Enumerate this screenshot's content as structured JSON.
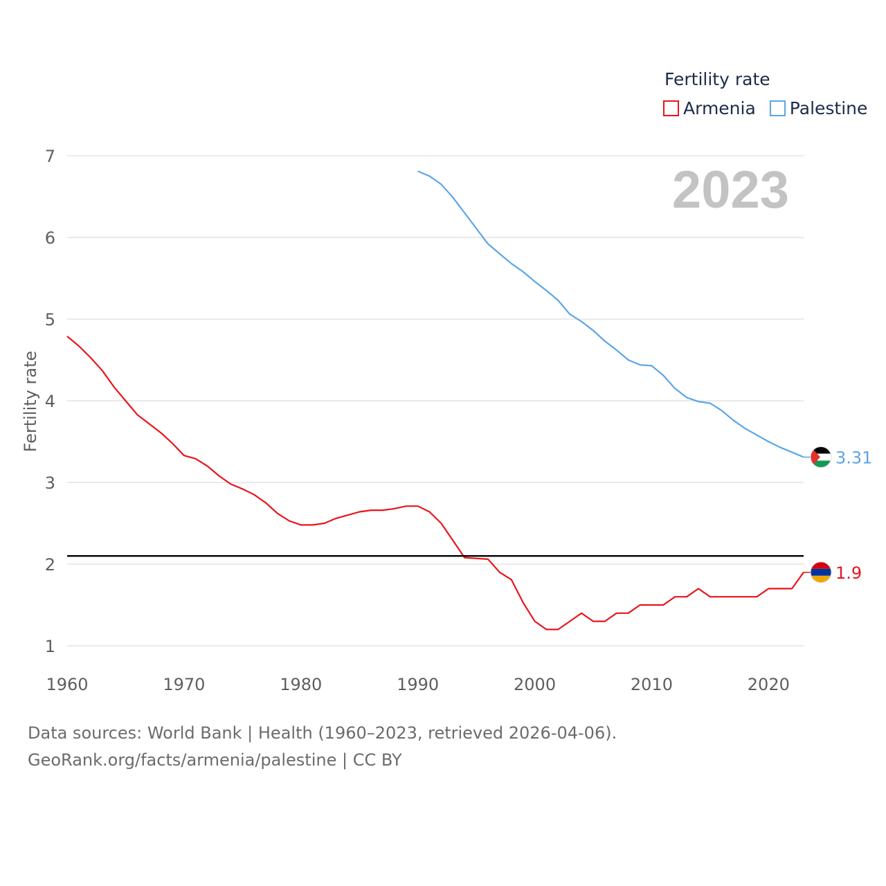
{
  "legend": {
    "title": "Fertility rate",
    "items": [
      {
        "label": "Armenia",
        "color": "#e8141b"
      },
      {
        "label": "Palestine",
        "color": "#5aa5e6"
      }
    ]
  },
  "year_label": "2023",
  "footer": {
    "line1": "Data sources: World Bank | Health (1960–2023, retrieved 2026-04-06).",
    "line2": "GeoRank.org/facts/armenia/palestine | CC BY"
  },
  "chart_data": {
    "type": "line",
    "ylabel": "Fertility rate",
    "xlabel": "",
    "xlim": [
      1960,
      2023
    ],
    "ylim": [
      0.8,
      7.0
    ],
    "x_ticks": [
      1960,
      1970,
      1980,
      1990,
      2000,
      2010,
      2020
    ],
    "y_ticks": [
      1,
      2,
      3,
      4,
      5,
      6,
      7
    ],
    "reference_line": {
      "value": 2.1,
      "color": "#000000"
    },
    "series": [
      {
        "name": "Armenia",
        "color": "#e8141b",
        "end_label": "1.9",
        "flag": "armenia-flag",
        "x": [
          1960,
          1961,
          1962,
          1963,
          1964,
          1965,
          1966,
          1967,
          1968,
          1969,
          1970,
          1971,
          1972,
          1973,
          1974,
          1975,
          1976,
          1977,
          1978,
          1979,
          1980,
          1981,
          1982,
          1983,
          1984,
          1985,
          1986,
          1987,
          1988,
          1989,
          1990,
          1991,
          1992,
          1993,
          1994,
          1995,
          1996,
          1997,
          1998,
          1999,
          2000,
          2001,
          2002,
          2003,
          2004,
          2005,
          2006,
          2007,
          2008,
          2009,
          2010,
          2011,
          2012,
          2013,
          2014,
          2015,
          2016,
          2017,
          2018,
          2019,
          2020,
          2021,
          2022,
          2023
        ],
        "values": [
          4.79,
          4.67,
          4.53,
          4.37,
          4.17,
          4.0,
          3.83,
          3.72,
          3.61,
          3.48,
          3.33,
          3.29,
          3.2,
          3.08,
          2.98,
          2.92,
          2.85,
          2.75,
          2.62,
          2.53,
          2.48,
          2.48,
          2.5,
          2.56,
          2.6,
          2.64,
          2.66,
          2.66,
          2.68,
          2.71,
          2.71,
          2.64,
          2.5,
          2.29,
          2.08,
          2.07,
          2.06,
          1.9,
          1.81,
          1.53,
          1.3,
          1.2,
          1.2,
          1.3,
          1.4,
          1.3,
          1.3,
          1.4,
          1.4,
          1.5,
          1.5,
          1.5,
          1.6,
          1.6,
          1.7,
          1.6,
          1.6,
          1.6,
          1.6,
          1.6,
          1.7,
          1.7,
          1.7,
          1.9
        ]
      },
      {
        "name": "Palestine",
        "color": "#5aa5e6",
        "end_label": "3.31",
        "flag": "palestine-flag",
        "x": [
          1990,
          1991,
          1992,
          1993,
          1994,
          1995,
          1996,
          1997,
          1998,
          1999,
          2000,
          2001,
          2002,
          2003,
          2004,
          2005,
          2006,
          2007,
          2008,
          2009,
          2010,
          2011,
          2012,
          2013,
          2014,
          2015,
          2016,
          2017,
          2018,
          2019,
          2020,
          2021,
          2022,
          2023
        ],
        "values": [
          6.81,
          6.75,
          6.65,
          6.49,
          6.3,
          6.11,
          5.92,
          5.8,
          5.68,
          5.58,
          5.46,
          5.35,
          5.23,
          5.06,
          4.97,
          4.86,
          4.73,
          4.62,
          4.5,
          4.44,
          4.43,
          4.31,
          4.15,
          4.04,
          3.99,
          3.97,
          3.88,
          3.76,
          3.66,
          3.58,
          3.5,
          3.43,
          3.37,
          3.31
        ]
      }
    ]
  }
}
